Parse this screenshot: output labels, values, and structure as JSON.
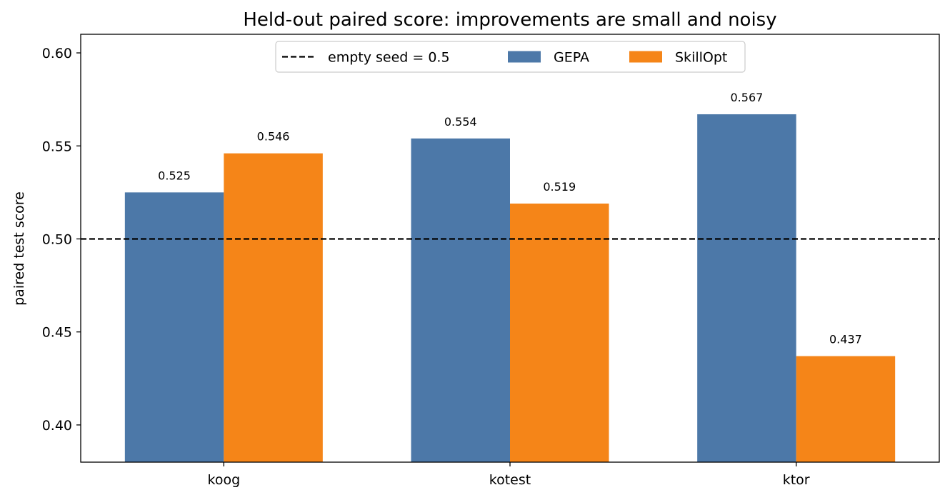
{
  "chart_data": {
    "type": "bar",
    "title": "Held-out paired score: improvements are small and noisy",
    "xlabel": "",
    "ylabel": "paired test score",
    "categories": [
      "koog",
      "kotest",
      "ktor"
    ],
    "series": [
      {
        "name": "GEPA",
        "color": "#4c78a8",
        "values": [
          0.525,
          0.554,
          0.567
        ],
        "labels": [
          "0.525",
          "0.554",
          "0.567"
        ]
      },
      {
        "name": "SkillOpt",
        "color": "#f58518",
        "values": [
          0.546,
          0.519,
          0.437
        ],
        "labels": [
          "0.546",
          "0.519",
          "0.437"
        ]
      }
    ],
    "reference_line": {
      "label": "empty seed = 0.5",
      "value": 0.5,
      "style": "dashed",
      "color": "#000000"
    },
    "ylim": [
      0.38,
      0.61
    ],
    "yticks": [
      0.4,
      0.45,
      0.5,
      0.55,
      0.6
    ],
    "ytick_labels": [
      "0.40",
      "0.45",
      "0.50",
      "0.55",
      "0.60"
    ],
    "grid": false,
    "legend_position": "upper center"
  }
}
